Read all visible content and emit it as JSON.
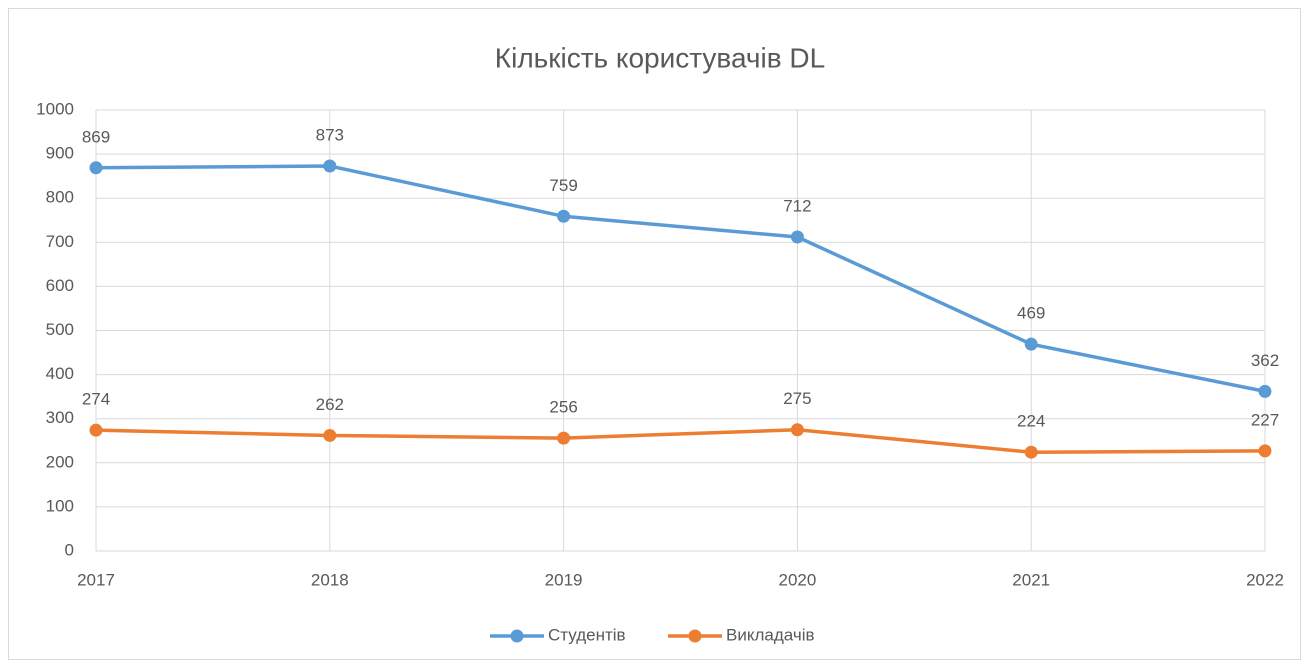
{
  "chart_data": {
    "type": "line",
    "title": "Кількість користувачів DL",
    "x": [
      2017,
      2018,
      2019,
      2020,
      2021,
      2022
    ],
    "series": [
      {
        "name": "Студентів",
        "color": "#5b9bd5",
        "values": [
          869,
          873,
          759,
          712,
          469,
          362
        ]
      },
      {
        "name": "Викладачів",
        "color": "#ed7d31",
        "values": [
          274,
          262,
          256,
          275,
          224,
          227
        ]
      }
    ],
    "xlim": [
      2017,
      2022
    ],
    "xticks": [
      2017,
      2018,
      2019,
      2020,
      2021,
      2022
    ],
    "ylim": [
      0,
      1000
    ],
    "yticks": [
      0,
      100,
      200,
      300,
      400,
      500,
      600,
      700,
      800,
      900,
      1000
    ],
    "grid": true,
    "legend": "bottom",
    "data_labels": true
  }
}
